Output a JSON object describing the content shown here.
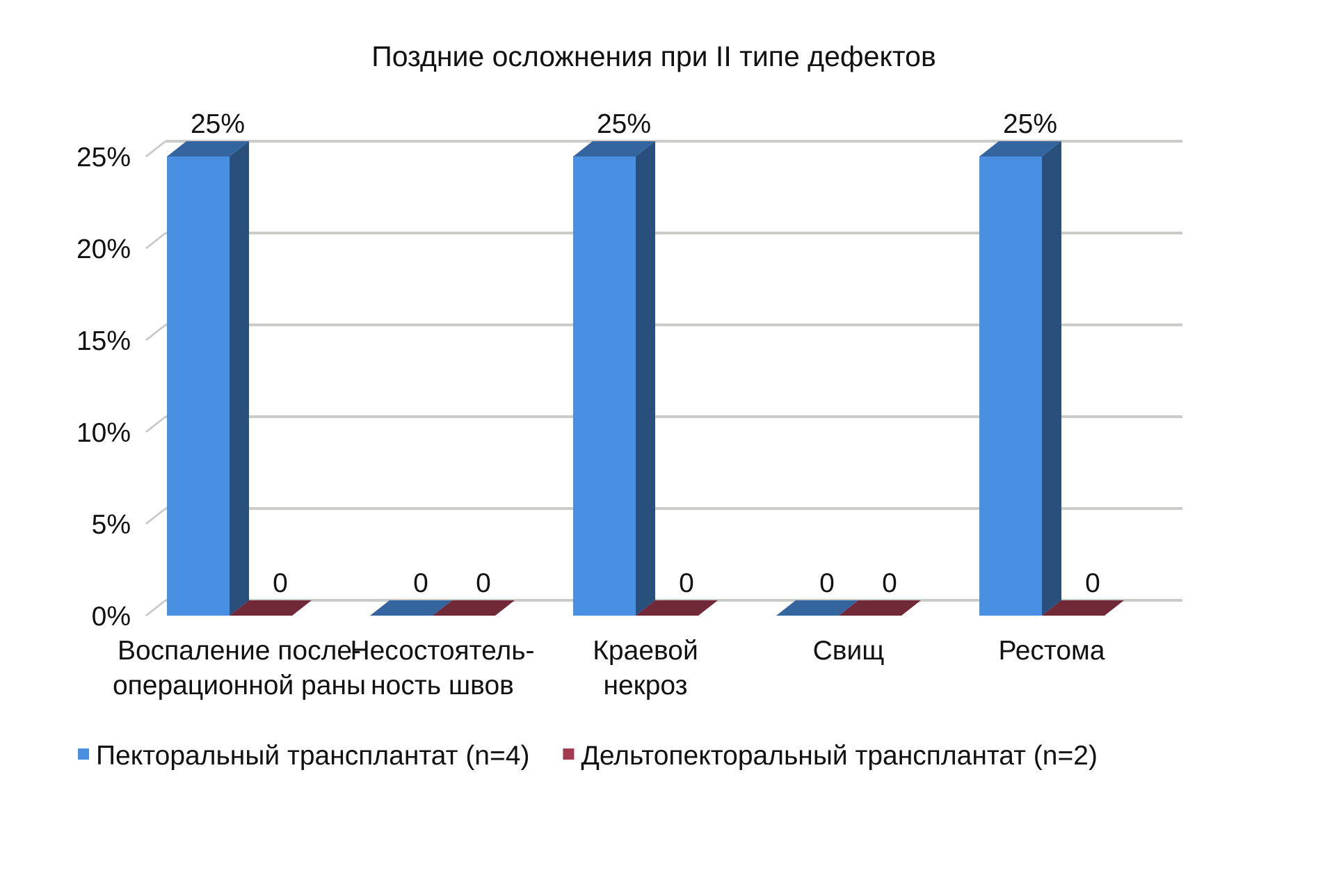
{
  "chart_data": {
    "type": "bar",
    "title": "Поздние осложнения при II типе дефектов",
    "categories": [
      [
        "Воспаление после-",
        "операционной раны"
      ],
      [
        "Несостоятель-",
        "ность швов"
      ],
      [
        "Краевой",
        "некроз"
      ],
      [
        "Свищ"
      ],
      [
        "Рестома"
      ]
    ],
    "series": [
      {
        "name": "Пекторальный трансплантат (n=4)",
        "values": [
          0.25,
          0,
          0.25,
          0,
          0.25
        ],
        "labels": [
          "25%",
          "0",
          "25%",
          "0",
          "25%"
        ],
        "color": "#4A90E2"
      },
      {
        "name": "Дельтопекторальный трансплантат (n=2)",
        "values": [
          0,
          0,
          0,
          0,
          0
        ],
        "labels": [
          "0",
          "0",
          "0",
          "0",
          "0"
        ],
        "color": "#A33B4F"
      }
    ],
    "ylim": [
      0,
      0.25
    ],
    "yticks": [
      "0%",
      "5%",
      "10%",
      "15%",
      "20%",
      "25%"
    ],
    "grid": true,
    "legend": "bottom",
    "style": "3d-column"
  }
}
